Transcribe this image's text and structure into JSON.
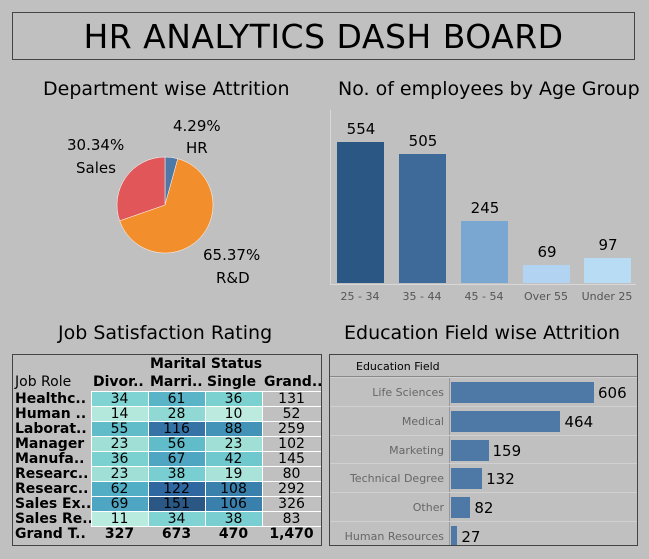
{
  "header": {
    "title": "HR ANALYTICS DASH BOARD"
  },
  "department_attrition": {
    "title": "Department wise Attrition",
    "chart_data": {
      "type": "pie",
      "slices": [
        {
          "name": "HR",
          "percent_label": "4.29%",
          "value": 4.29,
          "color": "#4e79a7"
        },
        {
          "name": "R&D",
          "percent_label": "65.37%",
          "value": 65.37,
          "color": "#f28e2b"
        },
        {
          "name": "Sales",
          "percent_label": "30.34%",
          "value": 30.34,
          "color": "#e15759"
        }
      ]
    }
  },
  "age_group": {
    "title": "No. of employees by Age Group",
    "chart_data": {
      "type": "bar",
      "categories": [
        "25 - 34",
        "35 - 44",
        "45 - 54",
        "Over 55",
        "Under 25"
      ],
      "values": [
        554,
        505,
        245,
        69,
        97
      ],
      "value_labels": [
        "554",
        "505",
        "245",
        "69",
        "97"
      ],
      "colors": [
        "#2a5783",
        "#3d6a98",
        "#7aa7d1",
        "#b2d4f2",
        "#b9dcf5"
      ],
      "ylim": [
        0,
        554
      ]
    }
  },
  "job_satisfaction": {
    "title": "Job Satisfaction Rating",
    "chart_data": {
      "type": "table",
      "group_header": "Marital Status",
      "row_header": "Job Role",
      "columns": [
        "Divor..",
        "Marri..",
        "Single",
        "Grand.."
      ],
      "rows": [
        {
          "role": "Healthc..",
          "values": [
            "34",
            "61",
            "36",
            "131"
          ],
          "colors": [
            "#7fd3d3",
            "#58b4c6",
            "#7bd0d0"
          ]
        },
        {
          "role": "Human ..",
          "values": [
            "14",
            "28",
            "10",
            "52"
          ],
          "colors": [
            "#b4e8dd",
            "#8fd8d3",
            "#bdeadf"
          ]
        },
        {
          "role": "Laborat..",
          "values": [
            "55",
            "116",
            "88",
            "259"
          ],
          "colors": [
            "#5fbcc8",
            "#3572a6",
            "#4293b7"
          ]
        },
        {
          "role": "Manager",
          "values": [
            "23",
            "56",
            "23",
            "102"
          ],
          "colors": [
            "#a0dfd6",
            "#5fbcc8",
            "#a0dfd6"
          ]
        },
        {
          "role": "Manufa..",
          "values": [
            "36",
            "67",
            "42",
            "145"
          ],
          "colors": [
            "#7bd0d0",
            "#4ea6c2",
            "#6fc8cd"
          ]
        },
        {
          "role": "Researc..",
          "values": [
            "23",
            "38",
            "19",
            "80"
          ],
          "colors": [
            "#a0dfd6",
            "#78ced0",
            "#a8e2d8"
          ]
        },
        {
          "role": "Researc..",
          "values": [
            "62",
            "122",
            "108",
            "292"
          ],
          "colors": [
            "#52aec4",
            "#2f68a0",
            "#3a80ad"
          ]
        },
        {
          "role": "Sales Ex..",
          "values": [
            "69",
            "151",
            "106",
            "326"
          ],
          "colors": [
            "#4ea6c2",
            "#2a5783",
            "#3a80ad"
          ]
        },
        {
          "role": "Sales Re..",
          "values": [
            "11",
            "34",
            "38",
            "83"
          ],
          "colors": [
            "#b9ebdf",
            "#7fd3d3",
            "#78ced0"
          ]
        }
      ],
      "total": {
        "role": "Grand T..",
        "values": [
          "327",
          "673",
          "470",
          "1,470"
        ]
      }
    }
  },
  "education_attrition": {
    "title": "Education Field wise Attrition",
    "chart_data": {
      "type": "bar",
      "orientation": "horizontal",
      "header": "Education Field",
      "categories": [
        "Life Sciences",
        "Medical",
        "Marketing",
        "Technical Degree",
        "Other",
        "Human Resources"
      ],
      "values": [
        606,
        464,
        159,
        132,
        82,
        27
      ],
      "value_labels": [
        "606",
        "464",
        "159",
        "132",
        "82",
        "27"
      ],
      "color": "#4e79a7"
    }
  }
}
